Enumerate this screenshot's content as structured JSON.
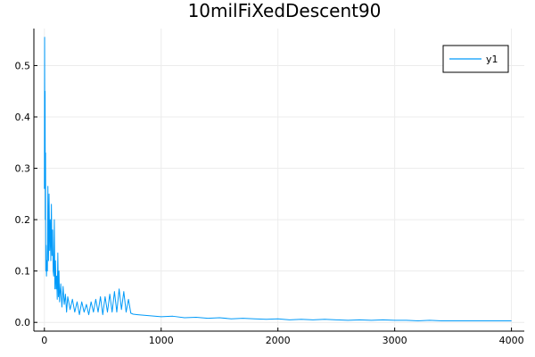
{
  "chart_data": {
    "type": "line",
    "title": "10milFiXedDescent90",
    "xlabel": "",
    "ylabel": "",
    "xlim": [
      -90,
      4110
    ],
    "ylim": [
      -0.017,
      0.572
    ],
    "xticks": [
      0,
      1000,
      2000,
      3000,
      4000
    ],
    "xtick_labels": [
      "0",
      "1000",
      "2000",
      "3000",
      "4000"
    ],
    "yticks": [
      0.0,
      0.1,
      0.2,
      0.3,
      0.4,
      0.5
    ],
    "ytick_labels": [
      "0.0",
      "0.1",
      "0.2",
      "0.3",
      "0.4",
      "0.5"
    ],
    "grid": true,
    "legend": {
      "position": "top-right",
      "entries": [
        "y1"
      ]
    },
    "colors": {
      "series": "#009af9",
      "grid": "#ececec",
      "axis": "#000000"
    },
    "series": [
      {
        "name": "y1",
        "x": [
          0,
          2,
          4,
          6,
          8,
          10,
          12,
          15,
          18,
          22,
          26,
          30,
          35,
          40,
          45,
          50,
          55,
          60,
          65,
          70,
          75,
          80,
          85,
          90,
          95,
          100,
          105,
          110,
          115,
          120,
          125,
          130,
          140,
          150,
          160,
          170,
          180,
          190,
          200,
          220,
          240,
          260,
          280,
          300,
          320,
          340,
          360,
          380,
          400,
          420,
          440,
          460,
          480,
          500,
          520,
          540,
          560,
          580,
          600,
          620,
          640,
          660,
          680,
          700,
          720,
          740,
          760,
          800,
          900,
          1000,
          1100,
          1200,
          1300,
          1400,
          1500,
          1600,
          1700,
          1800,
          1900,
          2000,
          2100,
          2200,
          2300,
          2400,
          2500,
          2600,
          2700,
          2800,
          2900,
          3000,
          3100,
          3200,
          3300,
          3400,
          3500,
          3600,
          3700,
          3800,
          3900,
          4000
        ],
        "values": [
          0.26,
          0.555,
          0.3,
          0.45,
          0.2,
          0.33,
          0.1,
          0.15,
          0.09,
          0.12,
          0.1,
          0.265,
          0.12,
          0.25,
          0.14,
          0.2,
          0.12,
          0.23,
          0.13,
          0.18,
          0.1,
          0.09,
          0.2,
          0.065,
          0.12,
          0.065,
          0.09,
          0.045,
          0.135,
          0.05,
          0.1,
          0.04,
          0.075,
          0.03,
          0.07,
          0.035,
          0.055,
          0.02,
          0.05,
          0.025,
          0.045,
          0.02,
          0.04,
          0.015,
          0.04,
          0.02,
          0.035,
          0.015,
          0.04,
          0.02,
          0.045,
          0.02,
          0.05,
          0.015,
          0.05,
          0.02,
          0.055,
          0.02,
          0.06,
          0.02,
          0.065,
          0.025,
          0.06,
          0.02,
          0.045,
          0.018,
          0.016,
          0.015,
          0.013,
          0.011,
          0.012,
          0.009,
          0.01,
          0.008,
          0.009,
          0.007,
          0.008,
          0.007,
          0.006,
          0.007,
          0.005,
          0.006,
          0.005,
          0.006,
          0.005,
          0.004,
          0.005,
          0.004,
          0.005,
          0.004,
          0.004,
          0.003,
          0.004,
          0.003,
          0.003,
          0.003,
          0.003,
          0.003,
          0.003,
          0.003
        ]
      }
    ]
  }
}
